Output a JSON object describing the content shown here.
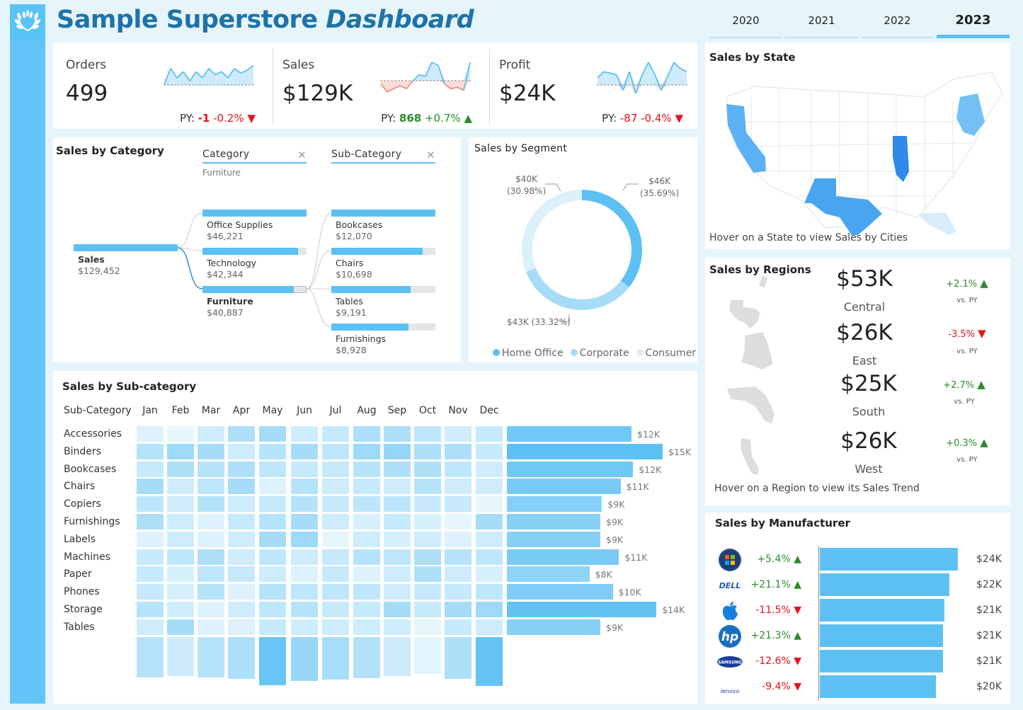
{
  "header": {
    "title_main": "Sample Superstore ",
    "title_em": "Dashboard",
    "years": [
      "2020",
      "2021",
      "2022",
      "2023"
    ],
    "active_year": "2023"
  },
  "kpis": [
    {
      "label": "Orders",
      "value": "499",
      "py_prefix": "PY: ",
      "py_diff": "-1",
      "py_pct": "-0.2%",
      "trend": "down",
      "spark": [
        0.7,
        0.2,
        0.5,
        0.3,
        0.6,
        0.3,
        0.5,
        0.2,
        0.4,
        0.3,
        0.5,
        0.2,
        0.35,
        0.25,
        0.1
      ]
    },
    {
      "label": "Sales",
      "value": "$129K",
      "py_prefix": "PY: ",
      "py_diff": "868",
      "py_pct": "+0.7%",
      "trend": "up",
      "spark": [
        0.7,
        0.95,
        0.85,
        0.75,
        0.85,
        0.6,
        0.4,
        0.45,
        0.0,
        0.1,
        0.7,
        0.85,
        0.8,
        0.9,
        0.0
      ]
    },
    {
      "label": "Profit",
      "value": "$24K",
      "py_prefix": "PY: ",
      "py_diff": "-87",
      "py_pct": "-0.4%",
      "trend": "down",
      "spark": [
        0.5,
        0.3,
        0.35,
        0.4,
        0.9,
        0.3,
        1.0,
        0.4,
        0.0,
        0.4,
        0.9,
        0.45,
        0.0,
        0.2,
        0.3
      ]
    }
  ],
  "category": {
    "title": "Sales by Category",
    "col1_header": "Category",
    "col1_filter": "Furniture",
    "col2_header": "Sub-Category",
    "root": {
      "label": "Sales",
      "value": "$129,452"
    },
    "categories": [
      {
        "label": "Office Supplies",
        "value": "$46,221",
        "frac": 1.0
      },
      {
        "label": "Technology",
        "value": "$42,344",
        "frac": 0.92
      },
      {
        "label": "Furniture",
        "value": "$40,887",
        "frac": 0.88
      }
    ],
    "subcategories": [
      {
        "label": "Bookcases",
        "value": "$12,070",
        "frac": 1.0
      },
      {
        "label": "Chairs",
        "value": "$10,698",
        "frac": 0.88
      },
      {
        "label": "Tables",
        "value": "$9,191",
        "frac": 0.76
      },
      {
        "label": "Furnishings",
        "value": "$8,928",
        "frac": 0.74
      }
    ]
  },
  "segment": {
    "title": "Sales by Segment",
    "labels": {
      "home_office": "$46K",
      "home_office_pct": "(35.69%)",
      "consumer": "$40K",
      "consumer_pct": "(30.98%)",
      "corporate": "$43K (33.32%)"
    },
    "legend": [
      "Home Office",
      "Corporate",
      "Consumer"
    ],
    "colors": {
      "home_office": "#5cc0f3",
      "corporate": "#a6dcf8",
      "consumer": "#dcf0fb"
    }
  },
  "state": {
    "title": "Sales by State",
    "note": "Hover on a State to view Sales by Cities"
  },
  "regions": {
    "title": "Sales by Regions",
    "note": "Hover on a Region to view its Sales Trend",
    "items": [
      {
        "value": "$53K",
        "name": "Central",
        "pct": "+2.1%",
        "trend": "up",
        "vs": "vs. PY"
      },
      {
        "value": "$26K",
        "name": "East",
        "pct": "-3.5%",
        "trend": "down",
        "vs": "vs. PY"
      },
      {
        "value": "$25K",
        "name": "South",
        "pct": "+2.7%",
        "trend": "up",
        "vs": "vs. PY"
      },
      {
        "value": "$26K",
        "name": "West",
        "pct": "+0.3%",
        "trend": "up",
        "vs": "vs. PY"
      }
    ]
  },
  "subcat_heatmap": {
    "title": "Sales by Sub-category",
    "row_header": "Sub-Category",
    "months": [
      "Jan",
      "Feb",
      "Mar",
      "Apr",
      "May",
      "Jun",
      "Jul",
      "Aug",
      "Sep",
      "Oct",
      "Nov",
      "Dec"
    ],
    "rows": [
      {
        "name": "Accessories",
        "total": "$12K",
        "frac": 0.8,
        "cells": [
          0.2,
          0.15,
          0.3,
          0.5,
          0.55,
          0.3,
          0.35,
          0.5,
          0.5,
          0.4,
          0.3,
          0.35
        ]
      },
      {
        "name": "Binders",
        "total": "$15K",
        "frac": 1.0,
        "cells": [
          0.45,
          0.6,
          0.55,
          0.3,
          0.45,
          0.55,
          0.4,
          0.6,
          0.65,
          0.5,
          0.5,
          0.35
        ]
      },
      {
        "name": "Bookcases",
        "total": "$12K",
        "frac": 0.81,
        "cells": [
          0.35,
          0.5,
          0.45,
          0.5,
          0.4,
          0.35,
          0.35,
          0.45,
          0.5,
          0.5,
          0.4,
          0.3
        ]
      },
      {
        "name": "Chairs",
        "total": "$11K",
        "frac": 0.73,
        "cells": [
          0.55,
          0.3,
          0.4,
          0.55,
          0.2,
          0.45,
          0.3,
          0.35,
          0.3,
          0.45,
          0.3,
          0.3
        ]
      },
      {
        "name": "Copiers",
        "total": "$9K",
        "frac": 0.61,
        "cells": [
          0.4,
          0.3,
          0.45,
          0.3,
          0.35,
          0.45,
          0.35,
          0.4,
          0.4,
          0.35,
          0.35,
          0.15
        ]
      },
      {
        "name": "Furnishings",
        "total": "$9K",
        "frac": 0.6,
        "cells": [
          0.5,
          0.3,
          0.2,
          0.35,
          0.45,
          0.55,
          0.3,
          0.25,
          0.35,
          0.25,
          0.15,
          0.55
        ]
      },
      {
        "name": "Labels",
        "total": "$9K",
        "frac": 0.6,
        "cells": [
          0.2,
          0.3,
          0.2,
          0.3,
          0.55,
          0.6,
          0.15,
          0.3,
          0.25,
          0.3,
          0.2,
          0.3
        ]
      },
      {
        "name": "Machines",
        "total": "$11K",
        "frac": 0.72,
        "cells": [
          0.35,
          0.4,
          0.5,
          0.3,
          0.4,
          0.3,
          0.35,
          0.45,
          0.4,
          0.5,
          0.45,
          0.4
        ]
      },
      {
        "name": "Paper",
        "total": "$8K",
        "frac": 0.53,
        "cells": [
          0.35,
          0.25,
          0.4,
          0.35,
          0.3,
          0.2,
          0.35,
          0.2,
          0.3,
          0.5,
          0.3,
          0.25
        ]
      },
      {
        "name": "Phones",
        "total": "$10K",
        "frac": 0.68,
        "cells": [
          0.35,
          0.25,
          0.45,
          0.2,
          0.45,
          0.4,
          0.4,
          0.4,
          0.3,
          0.35,
          0.35,
          0.4
        ]
      },
      {
        "name": "Storage",
        "total": "$14K",
        "frac": 0.96,
        "cells": [
          0.45,
          0.3,
          0.2,
          0.3,
          0.4,
          0.45,
          0.35,
          0.35,
          0.55,
          0.35,
          0.55,
          0.6
        ]
      },
      {
        "name": "Tables",
        "total": "$9K",
        "frac": 0.6,
        "cells": [
          0.3,
          0.55,
          0.2,
          0.2,
          0.35,
          0.3,
          0.3,
          0.3,
          0.3,
          0.15,
          0.35,
          0.3
        ]
      }
    ],
    "month_totals": [
      0.82,
      0.78,
      0.82,
      0.84,
      0.97,
      0.88,
      0.85,
      0.83,
      0.78,
      0.74,
      0.84,
      0.98
    ]
  },
  "manufacturer": {
    "title": "Sales by Manufacturer",
    "items": [
      {
        "logo": "windows-logo-icon",
        "pct": "+5.4%",
        "trend": "up",
        "value": "$24K",
        "frac": 1.0
      },
      {
        "logo": "dell-logo-icon",
        "logo_text": "DELL",
        "pct": "+21.1%",
        "trend": "up",
        "value": "$22K",
        "frac": 0.94
      },
      {
        "logo": "apple-logo-icon",
        "pct": "-11.5%",
        "trend": "down",
        "value": "$21K",
        "frac": 0.9
      },
      {
        "logo": "hp-logo-icon",
        "logo_text": "hp",
        "pct": "+21.3%",
        "trend": "up",
        "value": "$21K",
        "frac": 0.89
      },
      {
        "logo": "samsung-logo-icon",
        "logo_text": "SAMSUNG",
        "pct": "-12.6%",
        "trend": "down",
        "value": "$21K",
        "frac": 0.89
      },
      {
        "logo": "lenovo-logo-icon",
        "logo_text": "lenovo",
        "pct": "-9.4%",
        "trend": "down",
        "value": "$20K",
        "frac": 0.84
      }
    ]
  },
  "arrows": {
    "up": "▲",
    "down": "▼"
  },
  "colors": {
    "accent": "#5cc0f3",
    "up": "#2d8a2d",
    "down": "#e8101c",
    "title": "#1f73a8"
  }
}
